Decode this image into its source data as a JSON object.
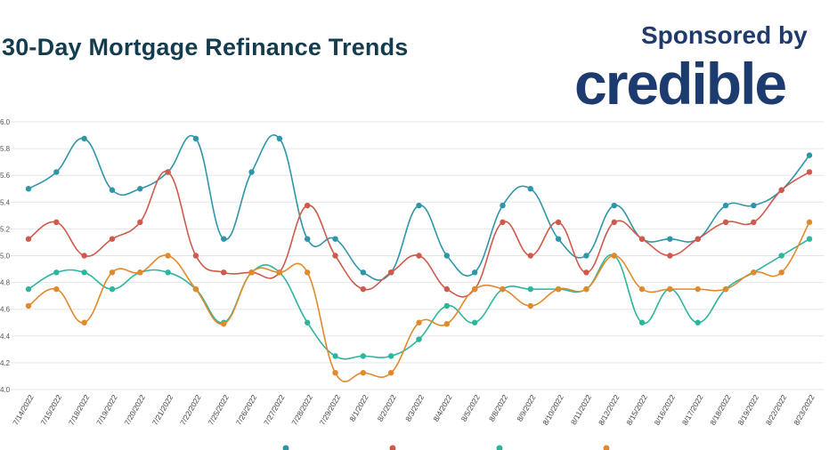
{
  "title": "30-Day Mortgage Refinance Trends",
  "sponsor": {
    "label": "Sponsored by",
    "brand": "credible"
  },
  "colors": {
    "series_30yr": "#2e96a8",
    "series_20yr": "#cf5a4c",
    "series_15yr": "#2db59d",
    "series_10yr": "#e08a2c",
    "title": "#143c4f",
    "brand": "#1c3b6e",
    "grid": "#e6e6e6"
  },
  "chart_data": {
    "type": "line",
    "title": "30-Day Mortgage Refinance Trends",
    "categories": [
      "7/14/2022",
      "7/15/2022",
      "7/18/2022",
      "7/19/2022",
      "7/20/2022",
      "7/21/2022",
      "7/22/2022",
      "7/25/2022",
      "7/26/2022",
      "7/27/2022",
      "7/28/2022",
      "7/29/2022",
      "8/1/2022",
      "8/2/2022",
      "8/3/2022",
      "8/4/2022",
      "8/5/2022",
      "8/8/2022",
      "8/9/2022",
      "8/10/2022",
      "8/11/2022",
      "8/12/2022",
      "8/15/2022",
      "8/16/2022",
      "8/17/2022",
      "8/18/2022",
      "8/19/2022",
      "8/22/2022",
      "8/23/2022"
    ],
    "yticks": [
      "4.0",
      "4.2",
      "4.4",
      "4.6",
      "4.8",
      "5.0",
      "5.2",
      "5.4",
      "5.6",
      "5.8",
      "6.0"
    ],
    "ylim": [
      4.0,
      6.0
    ],
    "grid": true,
    "series": [
      {
        "color_key": "series_30yr",
        "values": [
          5.5,
          5.625,
          5.875,
          5.49,
          5.5,
          5.625,
          5.875,
          5.125,
          5.625,
          5.875,
          5.125,
          5.125,
          4.875,
          4.875,
          5.375,
          5.0,
          4.875,
          5.375,
          5.5,
          5.125,
          5.0,
          5.375,
          5.125,
          5.125,
          5.125,
          5.375,
          5.375,
          5.49,
          5.75
        ]
      },
      {
        "color_key": "series_20yr",
        "values": [
          5.125,
          5.25,
          5.0,
          5.125,
          5.25,
          5.625,
          5.0,
          4.875,
          4.875,
          4.875,
          5.375,
          5.0,
          4.75,
          4.875,
          5.0,
          4.75,
          4.75,
          5.25,
          5.0,
          5.25,
          4.875,
          5.25,
          5.125,
          5.0,
          5.125,
          5.25,
          5.25,
          5.49,
          5.625
        ]
      },
      {
        "color_key": "series_15yr",
        "values": [
          4.75,
          4.875,
          4.875,
          4.75,
          4.875,
          4.875,
          4.75,
          4.5,
          4.875,
          4.875,
          4.5,
          4.25,
          4.25,
          4.25,
          4.375,
          4.625,
          4.5,
          4.75,
          4.75,
          4.75,
          4.75,
          5.0,
          4.5,
          4.75,
          4.5,
          4.75,
          4.875,
          5.0,
          5.125
        ]
      },
      {
        "color_key": "series_10yr",
        "values": [
          4.625,
          4.75,
          4.5,
          4.875,
          4.875,
          5.0,
          4.75,
          4.49,
          4.875,
          4.875,
          4.875,
          4.125,
          4.125,
          4.125,
          4.5,
          4.49,
          4.75,
          4.75,
          4.625,
          4.75,
          4.75,
          5.0,
          4.75,
          4.75,
          4.75,
          4.75,
          4.875,
          4.875,
          5.25
        ]
      }
    ]
  }
}
